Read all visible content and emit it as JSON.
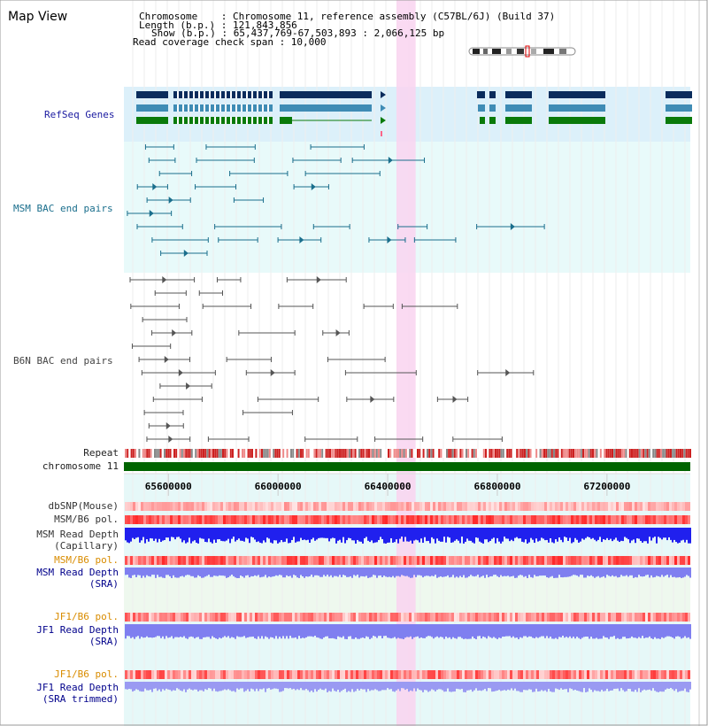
{
  "view_title": "Map View",
  "info": {
    "line1": "Chromosome    : Chromosome 11, reference assembly (C57BL/6J) (Build 37)",
    "line2": "Length (b.p.) : 121,843,856",
    "line3": "Show (b.p.) : 65,437,769-67,503,893 : 2,066,125 bp",
    "line4": "Read coverage check span : 10,000"
  },
  "tracks": {
    "refseq": "RefSeq Genes",
    "msm_bac": "MSM BAC end pairs",
    "b6n_bac": "B6N BAC end pairs",
    "repeat": "Repeat",
    "chromosome": "chromosome 11",
    "dbsnp": "dbSNP(Mouse)",
    "msm_b6_pol": "MSM/B6 pol.",
    "msm_depth_cap_1": "MSM Read Depth",
    "msm_depth_cap_2": "(Capillary)",
    "msm_b6_pol2": "MSM/B6 pol.",
    "msm_depth_sra_1": "MSM Read Depth",
    "msm_depth_sra_2": "(SRA)",
    "jf1_b6_pol": "JF1/B6 pol.",
    "jf1_depth_sra_1": "JF1 Read Depth",
    "jf1_depth_sra_2": "(SRA)",
    "jf1_b6_pol2": "JF1/B6 pol.",
    "jf1_depth_trim_1": "JF1 Read Depth",
    "jf1_depth_trim_2": "(SRA trimmed)"
  },
  "ruler": {
    "ticks": [
      {
        "pos": 65600000,
        "label": "65600000"
      },
      {
        "pos": 66000000,
        "label": "66000000"
      },
      {
        "pos": 66400000,
        "label": "66400000"
      },
      {
        "pos": 66800000,
        "label": "66800000"
      },
      {
        "pos": 67200000,
        "label": "67200000"
      }
    ],
    "start": 65437769,
    "end": 67503893
  },
  "highlight": {
    "start": 66432000,
    "end": 66502000
  },
  "colors": {
    "refseq_bg": "#dcf0fa",
    "bac_bg": "#e8fafa",
    "highlight": "#f9d4f0",
    "gene_dark": "#0a2c5c",
    "gene_mid": "#3f8cb5",
    "gene_green": "#0a7a0a",
    "msm_pair": "#1a6e8c",
    "b6n_pair": "#555555",
    "chromosome_bar": "#006400",
    "depth_blue": "#2020ee",
    "depth_light": "#7f7ff0",
    "pol_label": "#d98c00",
    "blue_label": "#00008b"
  }
}
